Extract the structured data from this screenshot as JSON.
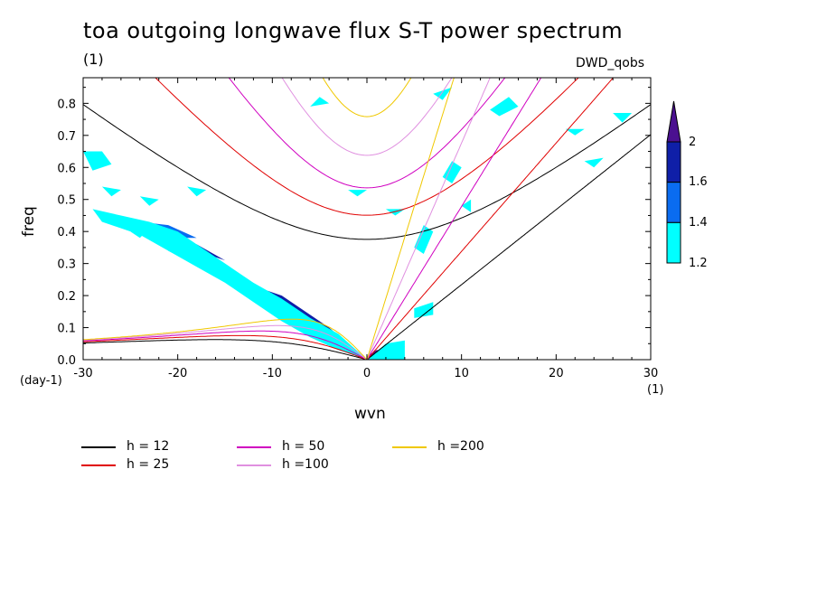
{
  "chart_data": {
    "type": "heatmap",
    "title": "toa outgoing longwave flux S-T power spectrum",
    "subtitle": "(1)",
    "source_label": "DWD_qobs",
    "xlabel": "wvn",
    "ylabel": "freq",
    "xunit": "(1)",
    "yunit": "(day-1)",
    "xlim": [
      -30,
      30
    ],
    "ylim": [
      0,
      0.88
    ],
    "xticks": [
      -30,
      -20,
      -10,
      0,
      10,
      20,
      30
    ],
    "xtick_labels": [
      "-30",
      "-20",
      "-10",
      "0",
      "10",
      "20",
      "30"
    ],
    "yticks": [
      0.0,
      0.1,
      0.2,
      0.3,
      0.4,
      0.5,
      0.6,
      0.7,
      0.8
    ],
    "ytick_labels": [
      "0.0",
      "0.1",
      "0.2",
      "0.3",
      "0.4",
      "0.5",
      "0.6",
      "0.7",
      "0.8"
    ],
    "colorbar": {
      "levels": [
        1.2,
        1.4,
        1.6,
        2
      ],
      "labels": [
        "1.2",
        "1.4",
        "1.6",
        "2"
      ],
      "colors": [
        "#00ffff",
        "#0a6cf0",
        "#0f1fa8",
        "#4b1090"
      ]
    },
    "legend": [
      {
        "label": "h = 12",
        "h": 12,
        "color": "#000000"
      },
      {
        "label": "h = 25",
        "h": 25,
        "color": "#e00000"
      },
      {
        "label": "h = 50",
        "h": 50,
        "color": "#d000c0"
      },
      {
        "label": "h =100",
        "h": 100,
        "color": "#e090e0"
      },
      {
        "label": "h =200",
        "h": 200,
        "color": "#f0c800"
      }
    ],
    "regions": [
      {
        "level": 3,
        "points": [
          [
            -1,
            0.02
          ],
          [
            -3,
            0.07
          ],
          [
            -5,
            0.11
          ],
          [
            -7,
            0.15
          ],
          [
            -8,
            0.17
          ],
          [
            -7,
            0.13
          ],
          [
            -5,
            0.08
          ],
          [
            -3,
            0.04
          ]
        ]
      },
      {
        "level": 3,
        "points": [
          [
            0,
            0.01
          ],
          [
            1,
            0.03
          ],
          [
            3,
            0.03
          ],
          [
            3,
            0.01
          ]
        ]
      },
      {
        "level": 2,
        "points": [
          [
            0,
            0.0
          ],
          [
            -2,
            0.05
          ],
          [
            -4,
            0.1
          ],
          [
            -6,
            0.14
          ],
          [
            -9,
            0.2
          ],
          [
            -11,
            0.22
          ],
          [
            -10,
            0.17
          ],
          [
            -7,
            0.12
          ],
          [
            -4,
            0.06
          ],
          [
            -2,
            0.02
          ]
        ]
      },
      {
        "level": 2,
        "points": [
          [
            -15,
            0.31
          ],
          [
            -18,
            0.36
          ],
          [
            -20,
            0.37
          ],
          [
            -17,
            0.33
          ]
        ]
      },
      {
        "level": 2,
        "points": [
          [
            0,
            0.0
          ],
          [
            2,
            0.04
          ],
          [
            4,
            0.04
          ],
          [
            3,
            0.0
          ]
        ]
      },
      {
        "level": 1,
        "points": [
          [
            0,
            0.0
          ],
          [
            -3,
            0.07
          ],
          [
            -6,
            0.12
          ],
          [
            -9,
            0.17
          ],
          [
            -12,
            0.22
          ],
          [
            -14,
            0.26
          ],
          [
            -16,
            0.3
          ],
          [
            -19,
            0.35
          ],
          [
            -22,
            0.38
          ],
          [
            -21,
            0.34
          ],
          [
            -17,
            0.28
          ],
          [
            -13,
            0.22
          ],
          [
            -10,
            0.16
          ],
          [
            -7,
            0.1
          ],
          [
            -4,
            0.05
          ],
          [
            -1,
            0.01
          ]
        ]
      },
      {
        "level": 1,
        "points": [
          [
            -18,
            0.38
          ],
          [
            -21,
            0.42
          ],
          [
            -24,
            0.43
          ],
          [
            -22,
            0.38
          ]
        ]
      },
      {
        "level": 0,
        "points": [
          [
            0,
            0.0
          ],
          [
            -3,
            0.08
          ],
          [
            -6,
            0.13
          ],
          [
            -9,
            0.19
          ],
          [
            -12,
            0.24
          ],
          [
            -14,
            0.28
          ],
          [
            -16,
            0.32
          ],
          [
            -18,
            0.36
          ],
          [
            -20,
            0.4
          ],
          [
            -23,
            0.43
          ],
          [
            -26,
            0.45
          ],
          [
            -29,
            0.47
          ],
          [
            -28,
            0.43
          ],
          [
            -24,
            0.39
          ],
          [
            -21,
            0.34
          ],
          [
            -18,
            0.29
          ],
          [
            -15,
            0.24
          ],
          [
            -12,
            0.18
          ],
          [
            -9,
            0.12
          ],
          [
            -6,
            0.07
          ],
          [
            -3,
            0.03
          ]
        ]
      },
      {
        "level": 0,
        "points": [
          [
            -30,
            0.65
          ],
          [
            -28,
            0.65
          ],
          [
            -27,
            0.61
          ],
          [
            -29,
            0.59
          ]
        ]
      },
      {
        "level": 0,
        "points": [
          [
            -28,
            0.54
          ],
          [
            -26,
            0.53
          ],
          [
            -27,
            0.51
          ]
        ]
      },
      {
        "level": 0,
        "points": [
          [
            -24,
            0.51
          ],
          [
            -22,
            0.5
          ],
          [
            -23,
            0.48
          ]
        ]
      },
      {
        "level": 0,
        "points": [
          [
            -25,
            0.4
          ],
          [
            -23,
            0.41
          ],
          [
            -24,
            0.38
          ]
        ]
      },
      {
        "level": 0,
        "points": [
          [
            -19,
            0.54
          ],
          [
            -17,
            0.53
          ],
          [
            -18,
            0.51
          ]
        ]
      },
      {
        "level": 0,
        "points": [
          [
            -6,
            0.79
          ],
          [
            -5,
            0.82
          ],
          [
            -4,
            0.8
          ]
        ]
      },
      {
        "level": 0,
        "points": [
          [
            0,
            0.0
          ],
          [
            2,
            0.05
          ],
          [
            4,
            0.06
          ],
          [
            4,
            0.0
          ]
        ]
      },
      {
        "level": 0,
        "points": [
          [
            5,
            0.16
          ],
          [
            7,
            0.18
          ],
          [
            7,
            0.14
          ],
          [
            5,
            0.13
          ]
        ]
      },
      {
        "level": 0,
        "points": [
          [
            5,
            0.35
          ],
          [
            6,
            0.42
          ],
          [
            7,
            0.4
          ],
          [
            6,
            0.33
          ]
        ]
      },
      {
        "level": 0,
        "points": [
          [
            8,
            0.57
          ],
          [
            9,
            0.62
          ],
          [
            10,
            0.6
          ],
          [
            9,
            0.55
          ]
        ]
      },
      {
        "level": 0,
        "points": [
          [
            10,
            0.48
          ],
          [
            11,
            0.5
          ],
          [
            11,
            0.46
          ]
        ]
      },
      {
        "level": 0,
        "points": [
          [
            13,
            0.78
          ],
          [
            15,
            0.82
          ],
          [
            16,
            0.79
          ],
          [
            14,
            0.76
          ]
        ]
      },
      {
        "level": 0,
        "points": [
          [
            7,
            0.83
          ],
          [
            9,
            0.85
          ],
          [
            8,
            0.81
          ]
        ]
      },
      {
        "level": 0,
        "points": [
          [
            26,
            0.77
          ],
          [
            28,
            0.77
          ],
          [
            27,
            0.74
          ]
        ]
      },
      {
        "level": 0,
        "points": [
          [
            21,
            0.72
          ],
          [
            23,
            0.72
          ],
          [
            22,
            0.7
          ]
        ]
      },
      {
        "level": 0,
        "points": [
          [
            23,
            0.62
          ],
          [
            25,
            0.63
          ],
          [
            24,
            0.6
          ]
        ]
      },
      {
        "level": 0,
        "points": [
          [
            -2,
            0.53
          ],
          [
            0,
            0.53
          ],
          [
            -1,
            0.51
          ]
        ]
      },
      {
        "level": 0,
        "points": [
          [
            2,
            0.47
          ],
          [
            4,
            0.47
          ],
          [
            3,
            0.45
          ]
        ]
      }
    ]
  }
}
